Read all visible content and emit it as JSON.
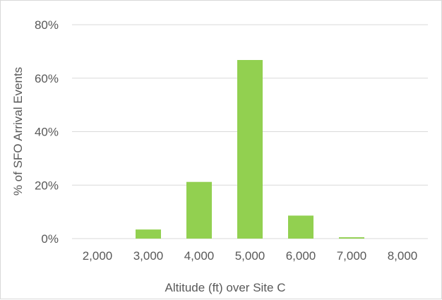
{
  "chart_data": {
    "type": "bar",
    "categories": [
      "2,000",
      "3,000",
      "4,000",
      "5,000",
      "6,000",
      "7,000",
      "8,000"
    ],
    "values": [
      0,
      3.4,
      21.2,
      66.8,
      8.6,
      0.5,
      0
    ],
    "title": "",
    "xlabel": "Altitude (ft) over Site C",
    "ylabel": "% of SFO Arrival Events",
    "ylim": [
      0,
      80
    ],
    "yticks": [
      0,
      20,
      40,
      60,
      80
    ],
    "ytick_labels": [
      "0%",
      "20%",
      "40%",
      "60%",
      "80%"
    ],
    "grid": true,
    "bar_color": "#92d050",
    "grid_color": "#d9d9d9",
    "text_color": "#595959"
  }
}
